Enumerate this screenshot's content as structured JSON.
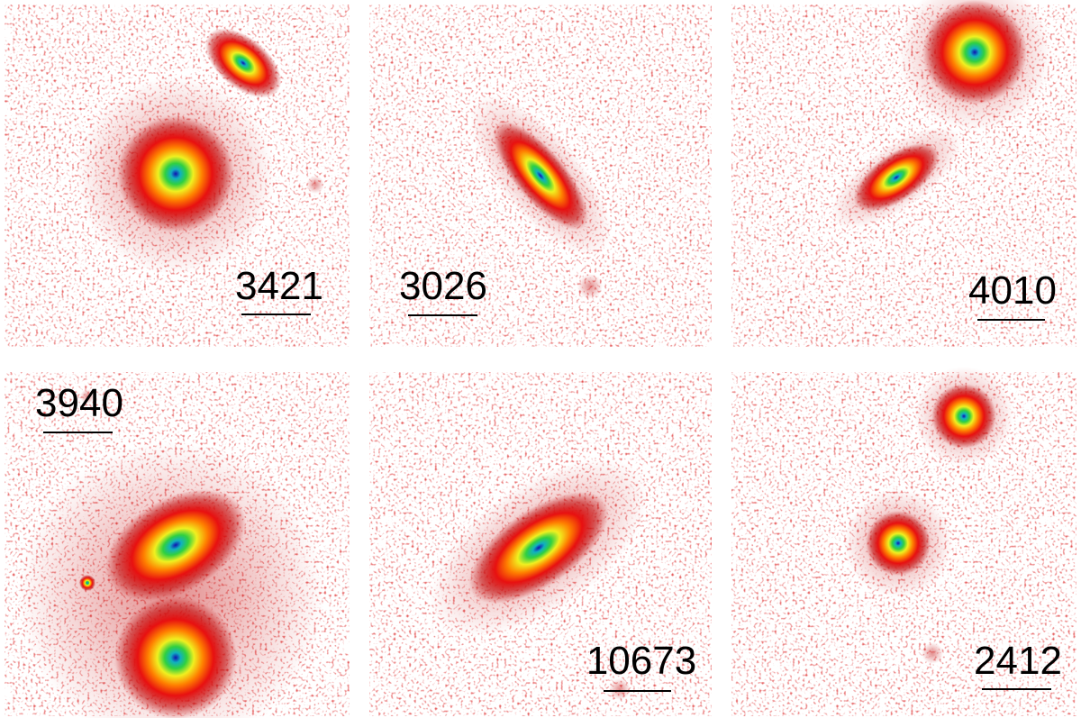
{
  "panels": [
    {
      "label": "3421"
    },
    {
      "label": "3026"
    },
    {
      "label": "4010"
    },
    {
      "label": "3940"
    },
    {
      "label": "10673"
    },
    {
      "label": "2412"
    }
  ]
}
